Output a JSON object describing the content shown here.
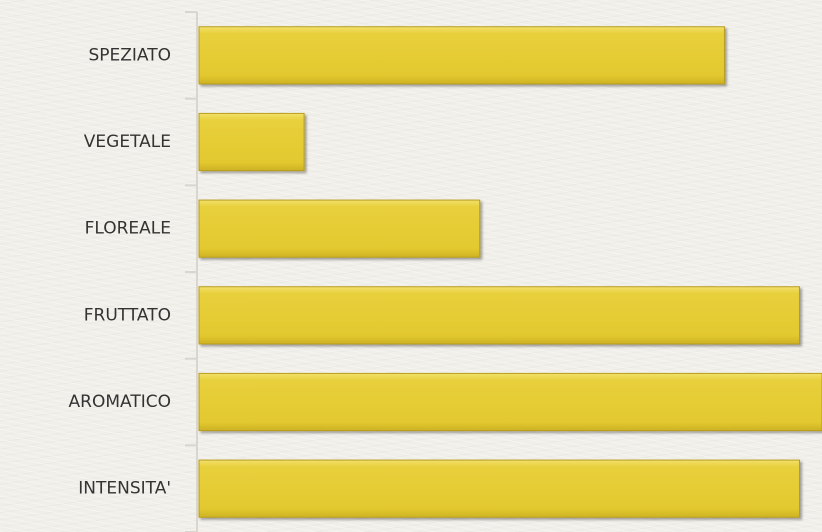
{
  "chart_data": {
    "type": "bar",
    "orientation": "horizontal",
    "categories": [
      "SPEZIATO",
      "VEGETALE",
      "FLOREALE",
      "FRUTTATO",
      "AROMATICO",
      "INTENSITA'"
    ],
    "values": [
      3.5,
      0.7,
      1.87,
      4.0,
      4.15,
      4.0
    ],
    "xlim": [
      0,
      4.15
    ],
    "grid": false,
    "legend": "none",
    "bar_color": "#e6cd35"
  }
}
